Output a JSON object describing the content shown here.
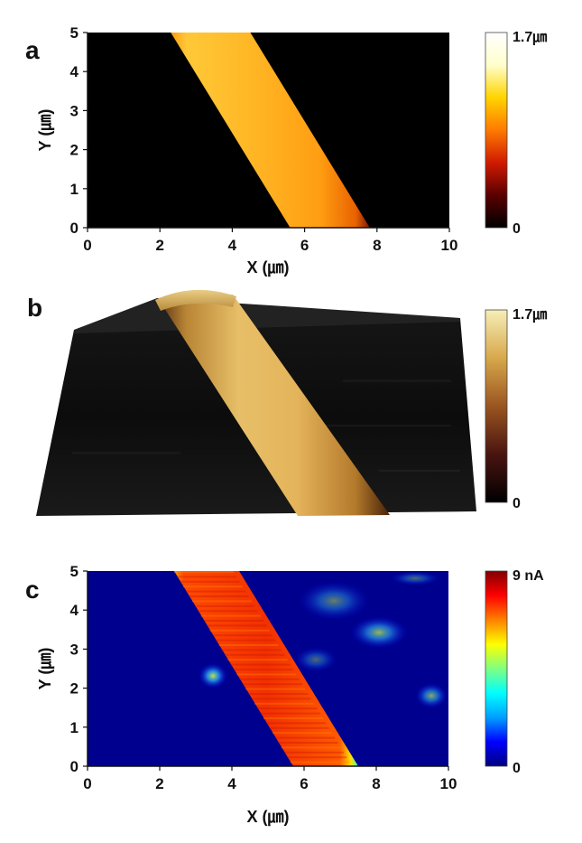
{
  "chart_data": [
    {
      "type": "heatmap",
      "panel": "a",
      "xlabel": "X (㎛)",
      "ylabel": "Y (㎛)",
      "xlim": [
        0,
        10
      ],
      "ylim": [
        0,
        5
      ],
      "x_ticks": [
        "0",
        "2",
        "4",
        "6",
        "8",
        "10"
      ],
      "y_ticks": [
        "0",
        "1",
        "2",
        "3",
        "4",
        "5"
      ],
      "colorbar": {
        "max_label": "1.7㎛",
        "min_label": "0",
        "colors": [
          "#000000",
          "#5a0000",
          "#d01a00",
          "#ff7a00",
          "#ffd400",
          "#ffffcc",
          "#ffffff"
        ]
      },
      "stripe": {
        "top_x": [
          2.3,
          4.5
        ],
        "bottom_x": [
          5.6,
          7.8
        ]
      }
    },
    {
      "type": "surface-3d",
      "panel": "b",
      "colorbar": {
        "max_label": "1.7㎛",
        "min_label": "0",
        "colors": [
          "#000000",
          "#4a1410",
          "#9a5520",
          "#d8a84c",
          "#f6eeb8"
        ]
      }
    },
    {
      "type": "heatmap",
      "panel": "c",
      "xlabel": "X (㎛)",
      "ylabel": "Y (㎛)",
      "xlim": [
        0,
        10
      ],
      "ylim": [
        0,
        5
      ],
      "x_ticks": [
        "0",
        "2",
        "4",
        "6",
        "8",
        "10"
      ],
      "y_ticks": [
        "0",
        "1",
        "2",
        "3",
        "4",
        "5"
      ],
      "colorbar": {
        "max_label": "9 nA",
        "min_label": "0",
        "colors": [
          "#000080",
          "#0000ff",
          "#00a0ff",
          "#00ffff",
          "#80ff80",
          "#ffff00",
          "#ff8000",
          "#ff0000",
          "#800000"
        ]
      },
      "stripe": {
        "top_x": [
          2.4,
          4.2
        ],
        "bottom_x": [
          5.7,
          7.5
        ]
      }
    }
  ]
}
